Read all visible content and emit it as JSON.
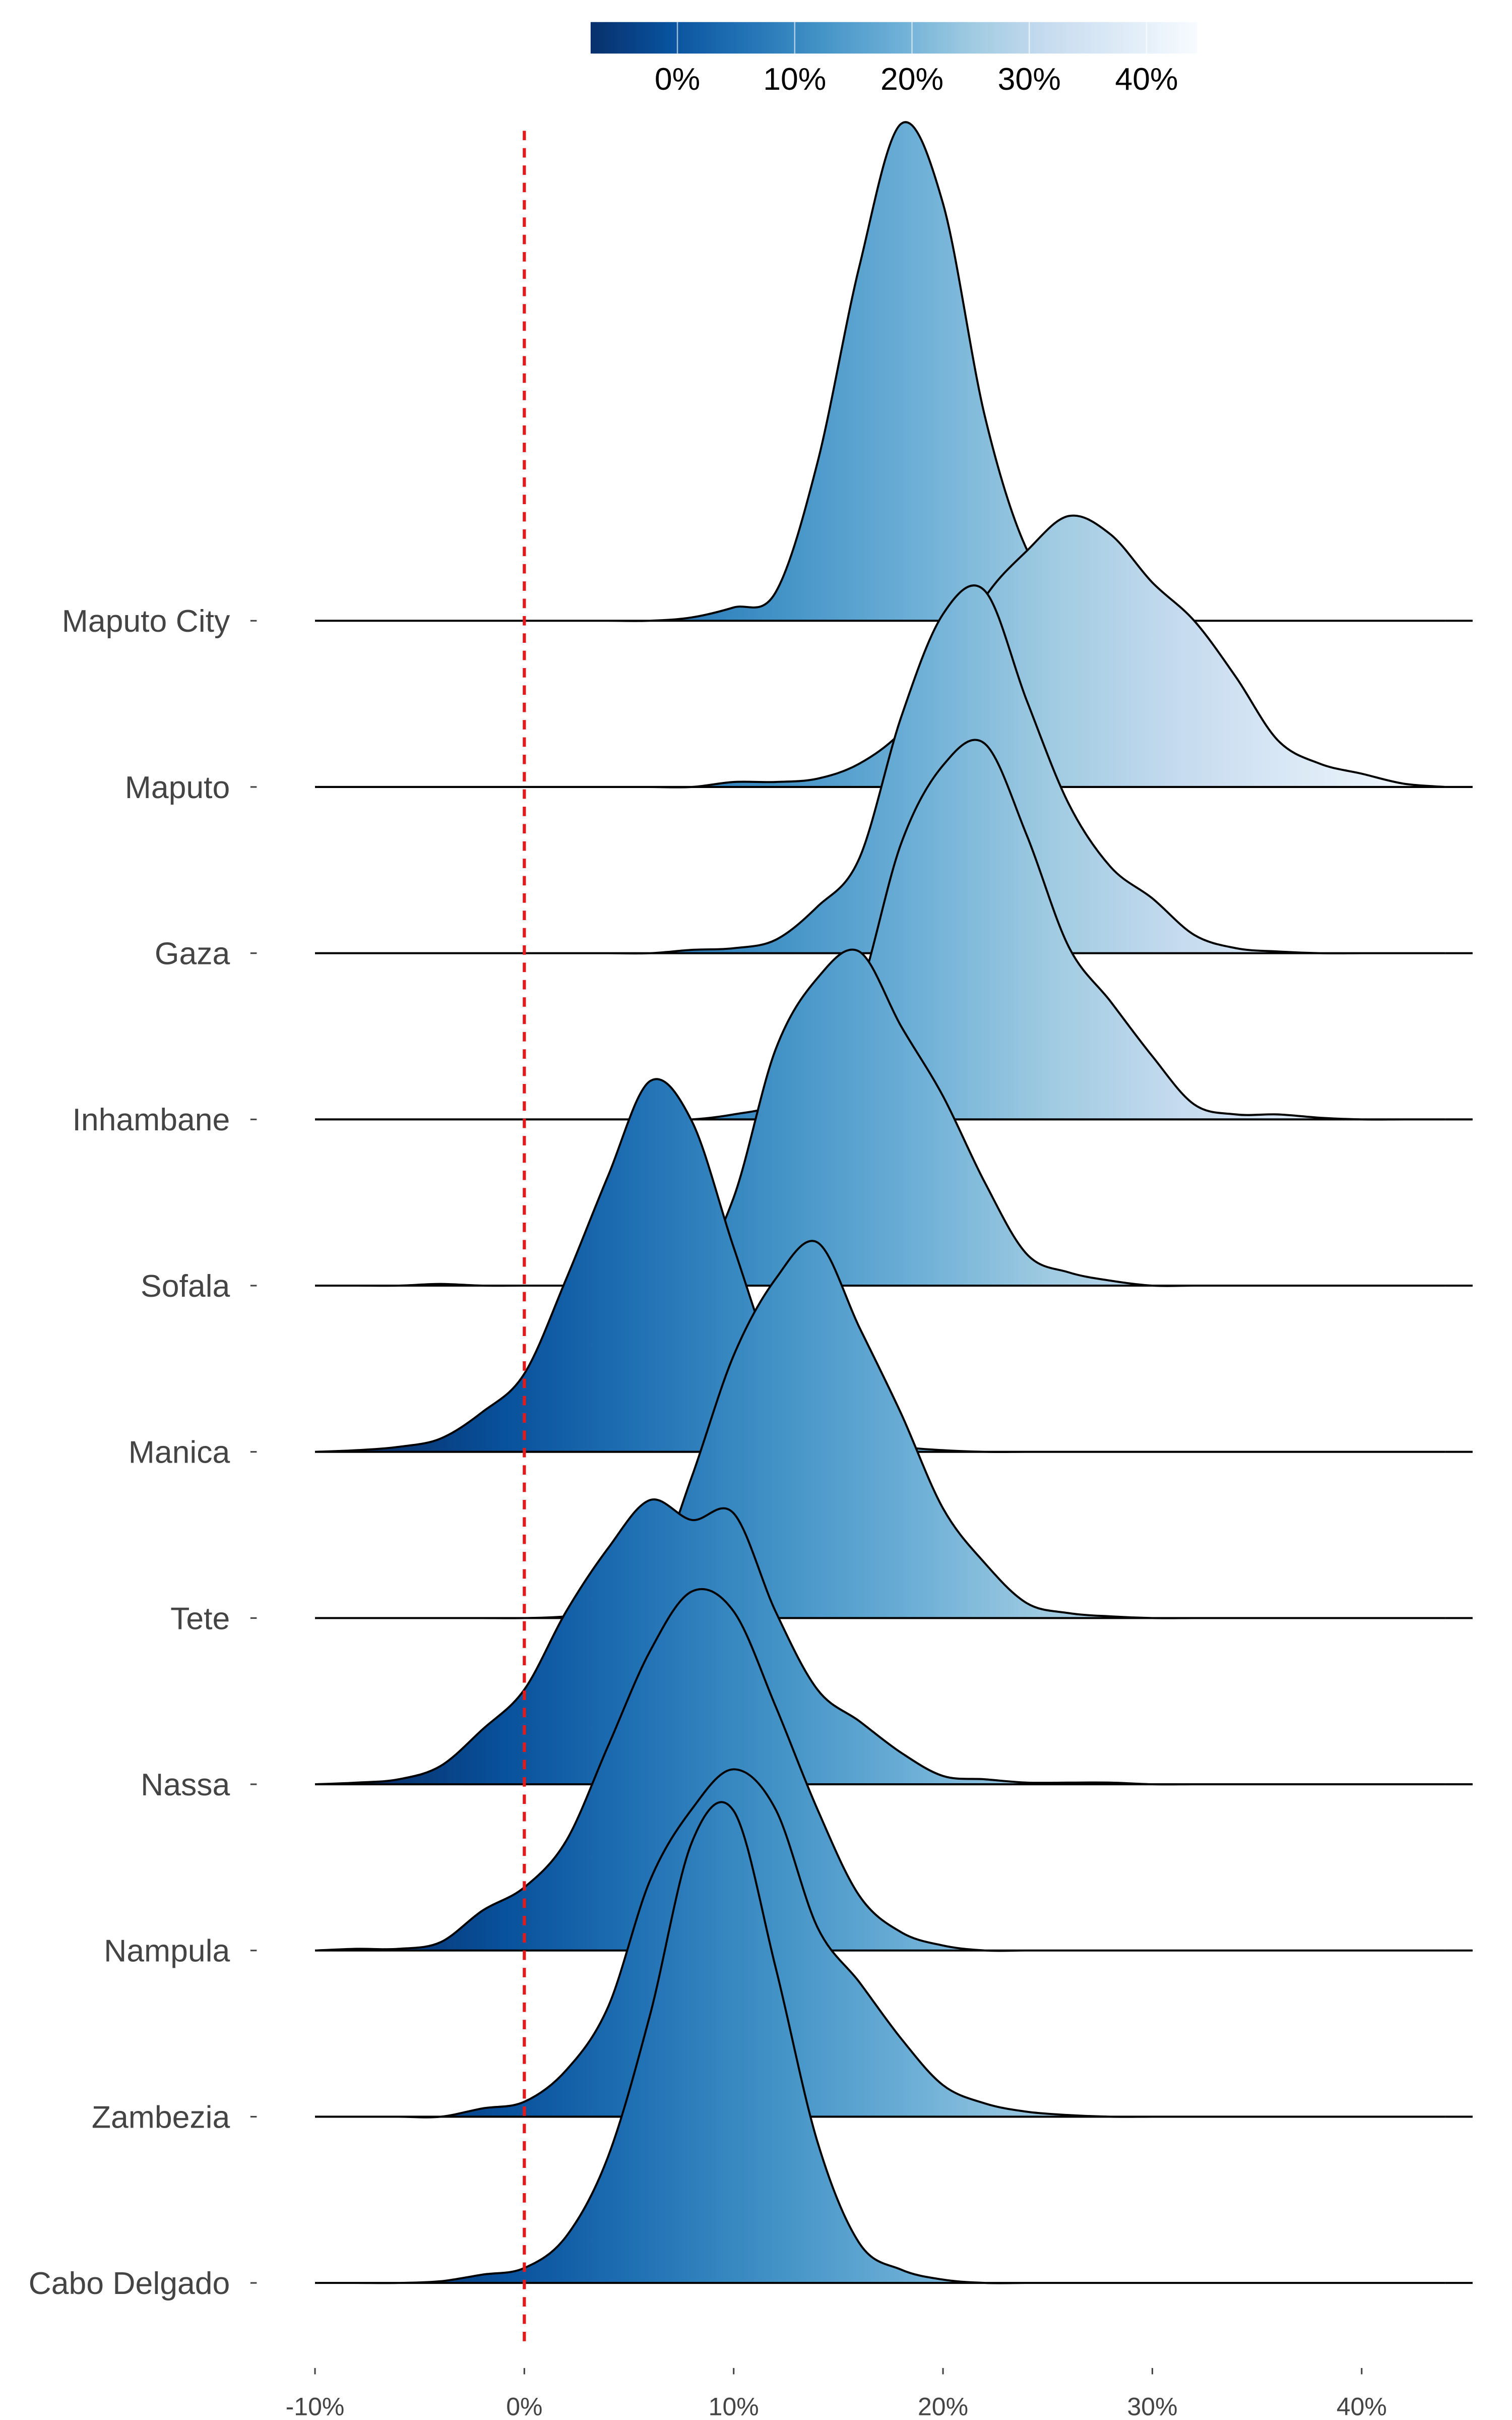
{
  "chart_data": {
    "type": "ridgeline",
    "x": [
      -10,
      -8,
      -6,
      -4,
      -2,
      0,
      2,
      4,
      6,
      8,
      10,
      12,
      14,
      16,
      18,
      20,
      22,
      24,
      26,
      28,
      30,
      32,
      34,
      36,
      38,
      40,
      42,
      44
    ],
    "series": [
      {
        "name": "Maputo City",
        "values": [
          0,
          0,
          0,
          0,
          0,
          0,
          0,
          0,
          0,
          0.02,
          0.08,
          0.17,
          0.95,
          2.13,
          2.99,
          2.51,
          1.23,
          0.43,
          0.14,
          0.05,
          0,
          0,
          0,
          0,
          0,
          0,
          0,
          0
        ]
      },
      {
        "name": "Maputo",
        "values": [
          0,
          0,
          0,
          0,
          0,
          0,
          0,
          0,
          0,
          0,
          0.03,
          0.03,
          0.05,
          0.14,
          0.33,
          0.66,
          1.14,
          1.42,
          1.63,
          1.52,
          1.23,
          1.0,
          0.66,
          0.28,
          0.14,
          0.08,
          0.02,
          0
        ]
      },
      {
        "name": "Gaza",
        "values": [
          0,
          0,
          0,
          0,
          0,
          0,
          0,
          0,
          0,
          0.02,
          0.03,
          0.08,
          0.28,
          0.57,
          1.42,
          2.04,
          2.18,
          1.52,
          0.9,
          0.52,
          0.33,
          0.11,
          0.03,
          0.01,
          0,
          0,
          0,
          0
        ]
      },
      {
        "name": "Inhambane",
        "values": [
          0,
          0,
          0,
          0,
          0,
          0,
          0,
          0,
          0,
          0,
          0.03,
          0.09,
          0.28,
          0.76,
          1.66,
          2.13,
          2.26,
          1.71,
          1.04,
          0.71,
          0.38,
          0.09,
          0.03,
          0.03,
          0.01,
          0,
          0,
          0
        ]
      },
      {
        "name": "Sofala",
        "values": [
          0,
          0,
          0,
          0.01,
          0,
          0,
          0,
          0,
          0.02,
          0.05,
          0.53,
          1.42,
          1.85,
          2.01,
          1.56,
          1.14,
          0.62,
          0.19,
          0.08,
          0.03,
          0,
          0,
          0,
          0,
          0,
          0,
          0,
          0
        ]
      },
      {
        "name": "Manica",
        "values": [
          0,
          0.01,
          0.03,
          0.08,
          0.24,
          0.47,
          1.04,
          1.66,
          2.23,
          1.99,
          1.23,
          0.52,
          0.19,
          0.08,
          0.03,
          0.01,
          0,
          0,
          0,
          0,
          0,
          0,
          0,
          0,
          0,
          0,
          0,
          0
        ]
      },
      {
        "name": "Tete",
        "values": [
          0,
          0,
          0,
          0,
          0,
          0,
          0.01,
          0.05,
          0.19,
          0.85,
          1.58,
          2.04,
          2.26,
          1.75,
          1.23,
          0.66,
          0.33,
          0.09,
          0.03,
          0.01,
          0,
          0,
          0,
          0,
          0,
          0,
          0,
          0
        ]
      },
      {
        "name": "Nassa",
        "values": [
          0,
          0.01,
          0.03,
          0.11,
          0.33,
          0.57,
          1.04,
          1.42,
          1.71,
          1.59,
          1.63,
          1.04,
          0.57,
          0.38,
          0.19,
          0.05,
          0.03,
          0.01,
          0.01,
          0.01,
          0,
          0,
          0,
          0,
          0,
          0,
          0,
          0
        ]
      },
      {
        "name": "Nampula",
        "values": [
          0,
          0.01,
          0.01,
          0.05,
          0.24,
          0.38,
          0.66,
          1.23,
          1.8,
          2.16,
          2.04,
          1.47,
          0.85,
          0.33,
          0.11,
          0.03,
          0,
          0,
          0,
          0,
          0,
          0,
          0,
          0,
          0,
          0,
          0,
          0
        ]
      },
      {
        "name": "Zambezia",
        "values": [
          0,
          0,
          0,
          0,
          0.05,
          0.09,
          0.28,
          0.66,
          1.42,
          1.85,
          2.09,
          1.85,
          1.14,
          0.81,
          0.47,
          0.19,
          0.08,
          0.03,
          0.01,
          0,
          0,
          0,
          0,
          0,
          0,
          0,
          0,
          0
        ]
      },
      {
        "name": "Cabo Delgado",
        "values": [
          0,
          0,
          0,
          0.01,
          0.05,
          0.09,
          0.28,
          0.76,
          1.61,
          2.65,
          2.84,
          1.9,
          0.85,
          0.24,
          0.08,
          0.02,
          0,
          0,
          0,
          0,
          0,
          0,
          0,
          0,
          0,
          0,
          0,
          0
        ]
      }
    ],
    "xlim": [
      -10,
      45.3
    ],
    "xticks": [
      {
        "value": -10,
        "label": "-10%"
      },
      {
        "value": 0,
        "label": "0%"
      },
      {
        "value": 10,
        "label": "10%"
      },
      {
        "value": 20,
        "label": "20%"
      },
      {
        "value": 30,
        "label": "30%"
      },
      {
        "value": 40,
        "label": "40%"
      }
    ],
    "vline": 0,
    "vline_color": "#e31a1c",
    "colorbar": {
      "lim": [
        -7.4,
        44.3
      ],
      "ticks": [
        {
          "value": 0,
          "label": "0%"
        },
        {
          "value": 10,
          "label": "10%"
        },
        {
          "value": 20,
          "label": "20%"
        },
        {
          "value": 30,
          "label": "30%"
        },
        {
          "value": 40,
          "label": "40%"
        }
      ],
      "colors": [
        "#08306b",
        "#08519c",
        "#2171b5",
        "#4292c6",
        "#6baed6",
        "#9ecae1",
        "#c6dbef",
        "#deebf7",
        "#f7fbff"
      ]
    }
  }
}
